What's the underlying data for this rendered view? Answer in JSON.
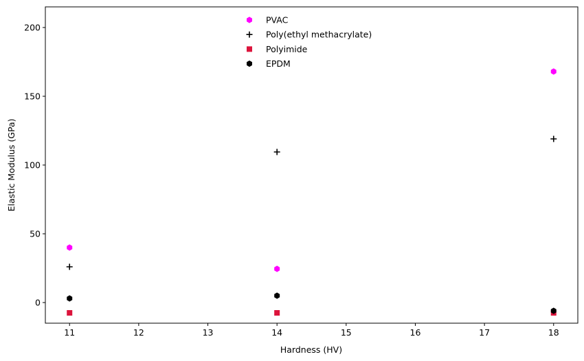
{
  "chart_data": {
    "type": "scatter",
    "title": "",
    "xlabel": "Hardness (HV)",
    "ylabel": "Elastic Modulus (GPa)",
    "xlim": [
      10.65,
      18.35
    ],
    "ylim": [
      -15,
      215
    ],
    "xticks": [
      11,
      12,
      13,
      14,
      15,
      16,
      17,
      18
    ],
    "yticks": [
      0,
      50,
      100,
      150,
      200
    ],
    "grid": false,
    "legend_position": "top-center",
    "series": [
      {
        "name": "PVAC",
        "marker": "hexagon",
        "color": "#ff00ff",
        "points": [
          {
            "x": 11,
            "y": 40
          },
          {
            "x": 14,
            "y": 24.5
          },
          {
            "x": 18,
            "y": 168
          }
        ]
      },
      {
        "name": "Poly(ethyl methacrylate)",
        "marker": "plus",
        "color": "#000000",
        "points": [
          {
            "x": 11,
            "y": 26
          },
          {
            "x": 14,
            "y": 109.5
          },
          {
            "x": 18,
            "y": 119
          }
        ]
      },
      {
        "name": "Polyimide",
        "marker": "square",
        "color": "#dc143c",
        "points": [
          {
            "x": 11,
            "y": -7.5
          },
          {
            "x": 14,
            "y": -7.5
          },
          {
            "x": 18,
            "y": -7.5
          }
        ]
      },
      {
        "name": "EPDM",
        "marker": "hexagon",
        "color": "#000000",
        "points": [
          {
            "x": 11,
            "y": 3
          },
          {
            "x": 14,
            "y": 5
          },
          {
            "x": 18,
            "y": -6
          }
        ]
      }
    ]
  }
}
